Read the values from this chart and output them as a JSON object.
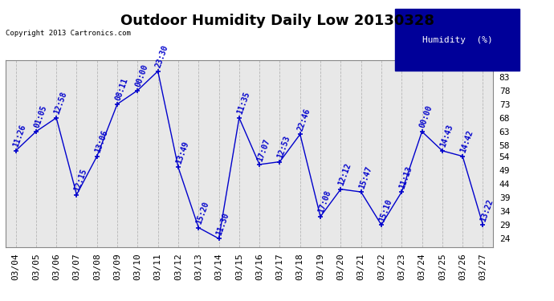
{
  "title": "Outdoor Humidity Daily Low 20130328",
  "copyright": "Copyright 2013 Cartronics.com",
  "legend_label": "Humidity  (%)",
  "yticks": [
    83,
    78,
    73,
    68,
    63,
    58,
    54,
    49,
    44,
    39,
    34,
    29,
    24
  ],
  "dates": [
    "03/04",
    "03/05",
    "03/06",
    "03/07",
    "03/08",
    "03/09",
    "03/10",
    "03/11",
    "03/12",
    "03/13",
    "03/14",
    "03/15",
    "03/16",
    "03/17",
    "03/18",
    "03/19",
    "03/20",
    "03/21",
    "03/22",
    "03/23",
    "03/24",
    "03/25",
    "03/26",
    "03/27"
  ],
  "values": [
    56,
    63,
    68,
    40,
    54,
    73,
    78,
    85,
    50,
    28,
    24,
    68,
    51,
    52,
    62,
    32,
    42,
    41,
    29,
    41,
    63,
    56,
    54,
    29
  ],
  "time_labels": [
    "11:26",
    "01:05",
    "12:58",
    "12:15",
    "13:06",
    "08:11",
    "00:00",
    "23:30",
    "13:49",
    "15:20",
    "11:30",
    "11:35",
    "17:07",
    "12:53",
    "22:46",
    "17:08",
    "12:12",
    "15:47",
    "15:10",
    "11:13",
    "00:00",
    "14:43",
    "14:42",
    "13:22"
  ],
  "line_color": "#0000cc",
  "bg_color": "#ffffff",
  "plot_bg_color": "#e8e8e8",
  "grid_color": "#aaaaaa",
  "title_fontsize": 13,
  "label_fontsize": 7,
  "tick_fontsize": 8,
  "legend_bg": "#000099",
  "legend_text_color": "#ffffff",
  "ylim_min": 21,
  "ylim_max": 89
}
